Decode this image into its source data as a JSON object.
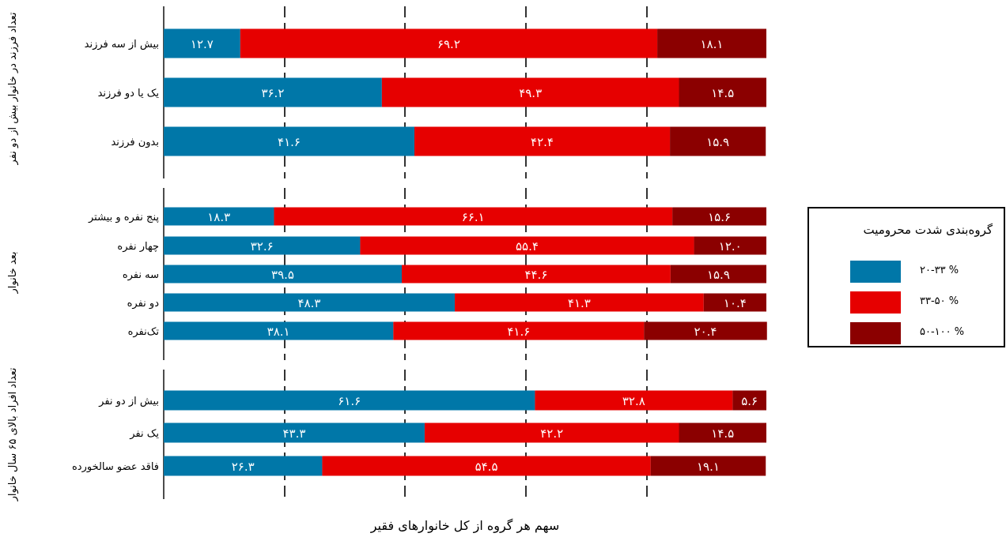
{
  "chart_data": {
    "type": "bar",
    "orientation": "horizontal-stacked",
    "xlabel": "سهم هر گروه از کل خانوارهای فقیر",
    "xlim": [
      0,
      100
    ],
    "grid": "vertical dashed",
    "series": [
      {
        "name": "۲۰-۳۳ %",
        "color": "#0077a8"
      },
      {
        "name": "۳۳-۵۰ %",
        "color": "#e60000"
      },
      {
        "name": "۵۰-۱۰۰ %",
        "color": "#8b0000"
      }
    ],
    "legend": {
      "title": "گروه‌بندی شدت محرومیت",
      "placement": "right"
    },
    "groups": [
      {
        "label": "تعداد فرزند در خانوار بیش از دو نفر",
        "rows": [
          {
            "category": "بیش از سه فرزند",
            "values": [
              12.7,
              69.2,
              18.1
            ],
            "labels": [
              "۱۲.۷",
              "۶۹.۲",
              "۱۸.۱"
            ]
          },
          {
            "category": "یک یا دو فرزند",
            "values": [
              36.2,
              49.3,
              14.5
            ],
            "labels": [
              "۳۶.۲",
              "۴۹.۳",
              "۱۴.۵"
            ]
          },
          {
            "category": "بدون فرزند",
            "values": [
              41.6,
              42.4,
              15.9
            ],
            "labels": [
              "۴۱.۶",
              "۴۲.۴",
              "۱۵.۹"
            ]
          }
        ]
      },
      {
        "label": "بعد خانوار",
        "rows": [
          {
            "category": "پنج نفره و بیشتر",
            "values": [
              18.3,
              66.1,
              15.6
            ],
            "labels": [
              "۱۸.۳",
              "۶۶.۱",
              "۱۵.۶"
            ]
          },
          {
            "category": "چهار نفره",
            "values": [
              32.6,
              55.4,
              12.0
            ],
            "labels": [
              "۳۲.۶",
              "۵۵.۴",
              "۱۲.۰"
            ]
          },
          {
            "category": "سه نفره",
            "values": [
              39.5,
              44.6,
              15.9
            ],
            "labels": [
              "۳۹.۵",
              "۴۴.۶",
              "۱۵.۹"
            ]
          },
          {
            "category": "دو نفره",
            "values": [
              48.3,
              41.3,
              10.4
            ],
            "labels": [
              "۴۸.۳",
              "۴۱.۳",
              "۱۰.۴"
            ]
          },
          {
            "category": "تک‌نفره",
            "values": [
              38.1,
              41.6,
              20.4
            ],
            "labels": [
              "۳۸.۱",
              "۴۱.۶",
              "۲۰.۴"
            ]
          }
        ]
      },
      {
        "label": "تعداد افراد بالای ۶۵ سال خانوار",
        "rows": [
          {
            "category": "بیش از دو نفر",
            "values": [
              61.6,
              32.8,
              5.6
            ],
            "labels": [
              "۶۱.۶",
              "۳۲.۸",
              "۵.۶"
            ]
          },
          {
            "category": "یک نفر",
            "values": [
              43.3,
              42.2,
              14.5
            ],
            "labels": [
              "۴۳.۳",
              "۴۲.۲",
              "۱۴.۵"
            ]
          },
          {
            "category": "فاقد عضو سالخورده",
            "values": [
              26.3,
              54.5,
              19.1
            ],
            "labels": [
              "۲۶.۳",
              "۵۴.۵",
              "۱۹.۱"
            ]
          }
        ]
      }
    ]
  }
}
